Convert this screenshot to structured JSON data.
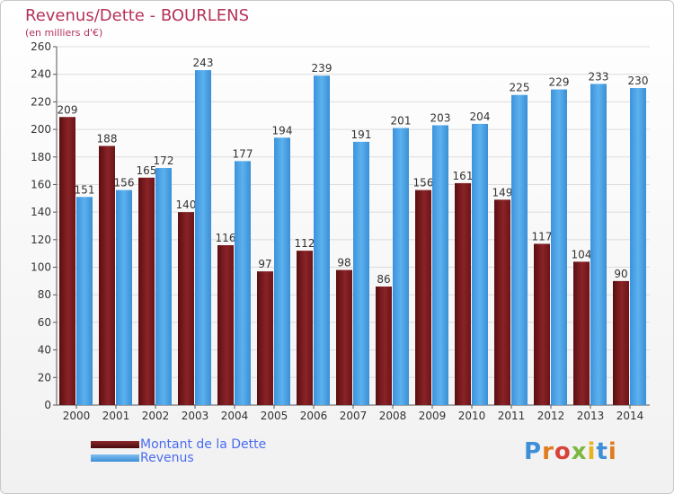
{
  "title": "Revenus/Dette - BOURLENS",
  "subtitle": "(en milliers d'€)",
  "logo": {
    "text": "Proxiti",
    "colors": [
      "#3f8fd8",
      "#e07b1f",
      "#d8423a",
      "#7cb73f",
      "#e8b321",
      "#3f8fd8",
      "#e07b1f"
    ]
  },
  "legend": [
    {
      "label": "Montant de la Dette",
      "color": "#6b1416"
    },
    {
      "label": "Revenus",
      "color": "#4aa3e6"
    }
  ],
  "chart_data": {
    "type": "bar",
    "categories": [
      "2000",
      "2001",
      "2002",
      "2003",
      "2004",
      "2005",
      "2006",
      "2007",
      "2008",
      "2009",
      "2010",
      "2011",
      "2012",
      "2013",
      "2014"
    ],
    "series": [
      {
        "name": "Montant de la Dette",
        "color": "#7a1a1e",
        "values": [
          209,
          188,
          165,
          140,
          116,
          97,
          112,
          98,
          86,
          156,
          161,
          149,
          117,
          104,
          90
        ]
      },
      {
        "name": "Revenus",
        "color": "#4aa3e6",
        "values": [
          151,
          156,
          172,
          243,
          177,
          194,
          239,
          191,
          201,
          203,
          204,
          225,
          229,
          233,
          230
        ]
      }
    ],
    "ylim": [
      0,
      260
    ],
    "yticks": [
      0,
      20,
      40,
      60,
      80,
      100,
      120,
      140,
      160,
      180,
      200,
      220,
      240,
      260
    ],
    "grid": true,
    "legend_position": "bottom-left"
  }
}
